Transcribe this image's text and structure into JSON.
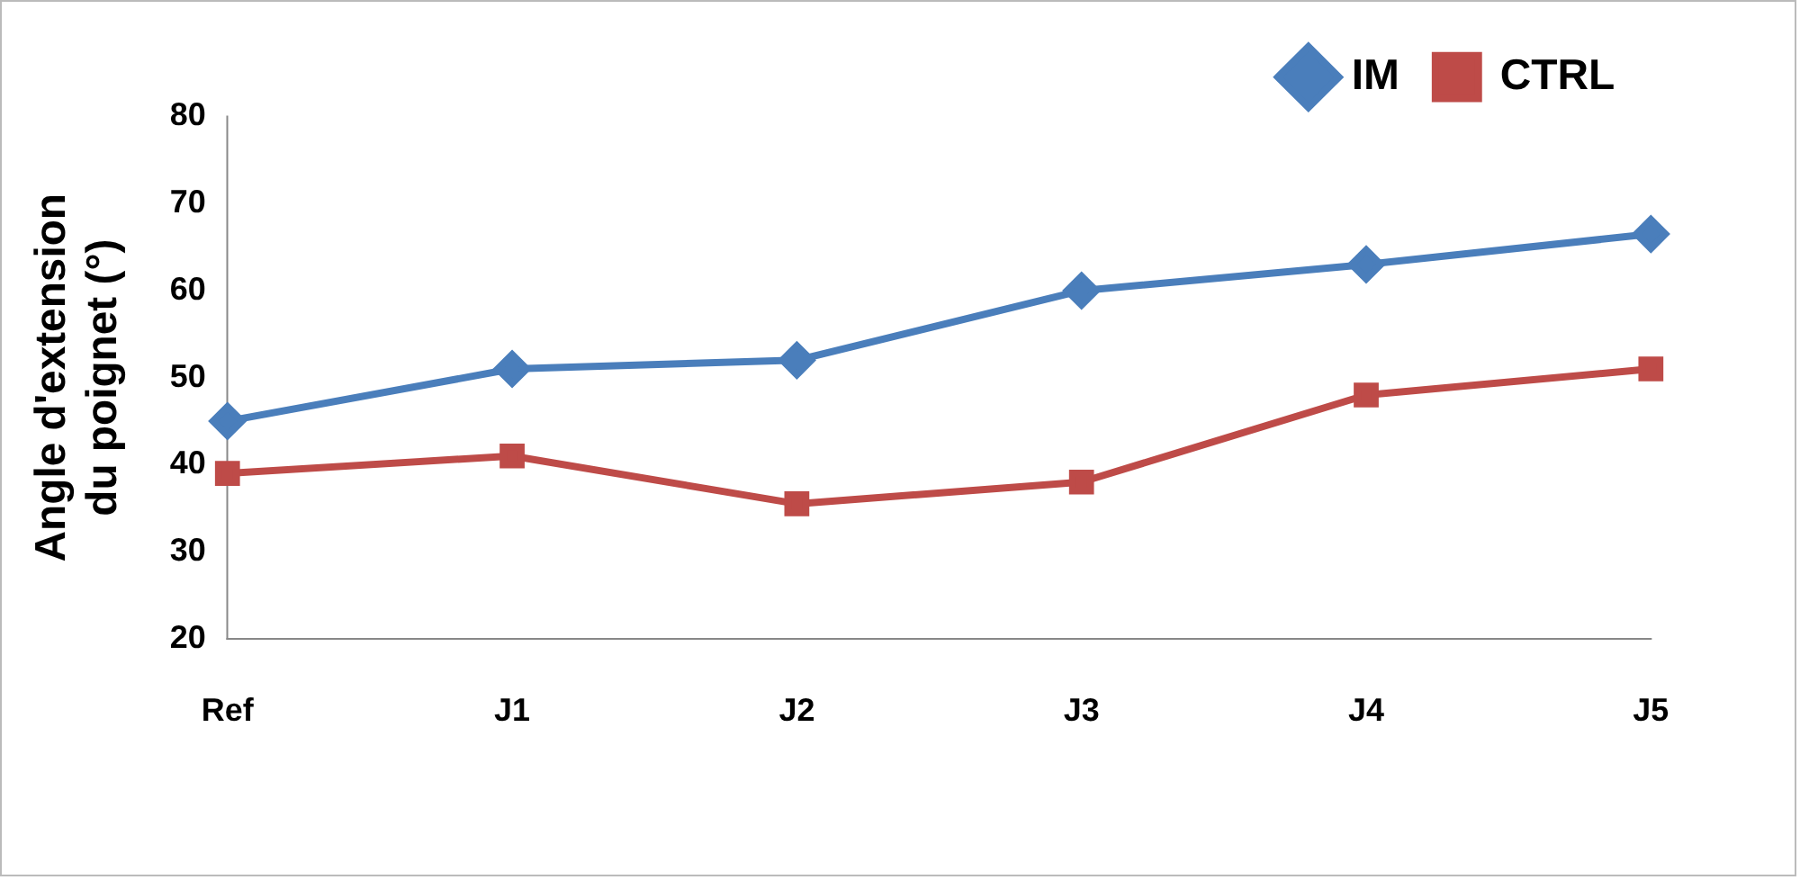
{
  "chart_data": {
    "type": "line",
    "ylabel": "Angle d'extension du poignet (°)",
    "categories": [
      "Ref",
      "J1",
      "J2",
      "J3",
      "J4",
      "J5"
    ],
    "series": [
      {
        "name": "IM",
        "color": "#4a7ebb",
        "marker": "diamond",
        "values": [
          45,
          51,
          52,
          60,
          63,
          66.5
        ]
      },
      {
        "name": "CTRL",
        "color": "#be4b48",
        "marker": "square",
        "values": [
          39,
          41,
          35.5,
          38,
          48,
          51
        ]
      }
    ],
    "ylim": [
      20,
      80
    ],
    "yticks": [
      20,
      30,
      40,
      50,
      60,
      70,
      80
    ],
    "grid": false,
    "legend": "top right"
  }
}
